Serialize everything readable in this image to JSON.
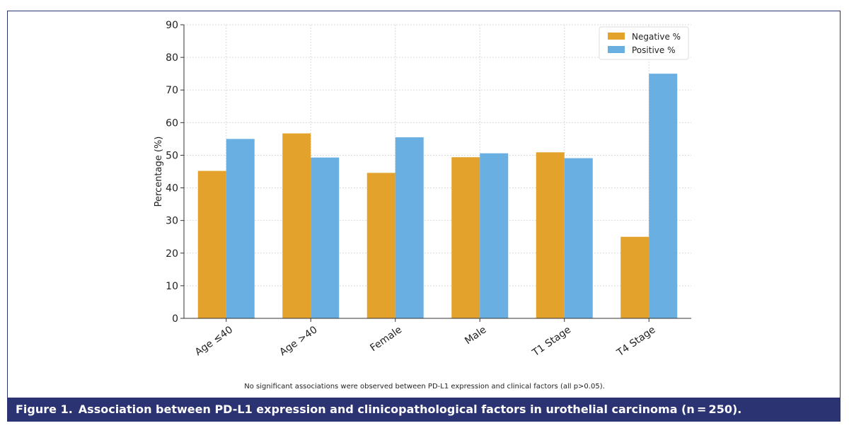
{
  "chart_data": {
    "type": "bar",
    "categories": [
      "Age ≤40",
      "Age >40",
      "Female",
      "Male",
      "T1 Stage",
      "T4 Stage"
    ],
    "series": [
      {
        "name": "Negative %",
        "values": [
          45.2,
          56.7,
          44.6,
          49.4,
          50.9,
          25.0
        ],
        "color": "#e2a22c"
      },
      {
        "name": "Positive %",
        "values": [
          55.0,
          49.3,
          55.5,
          50.6,
          49.1,
          75.0
        ],
        "color": "#6aafe2"
      }
    ],
    "ylabel": "Percentage (%)",
    "xlabel": "",
    "ylim": [
      0,
      90
    ],
    "yticks": [
      0,
      10,
      20,
      30,
      40,
      50,
      60,
      70,
      80,
      90
    ],
    "grid": true,
    "legend_position": "top-right"
  },
  "footnote": "No significant associations were observed between PD-L1 expression and clinical factors (all p>0.05).",
  "caption": {
    "label": "Figure 1.",
    "text": "Association between PD-L1 expression and clinicopathological factors in urothelial carcinoma (n = 250)."
  }
}
